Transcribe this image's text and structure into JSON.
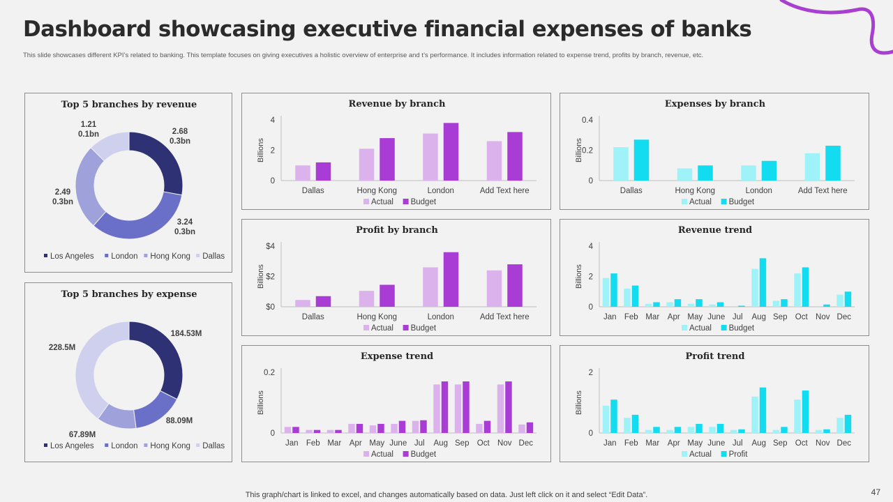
{
  "header": {
    "title": "Dashboard showcasing executive financial expenses of banks",
    "subtitle": "This slide showcases different KPI’s related to banking. This template focuses on giving executives a holistic overview of enterprise and t’s performance. It includes information related to expense trend, profits by branch, revenue, etc."
  },
  "footer": {
    "note": "This graph/chart is linked to excel, and changes automatically based on data. Just left click on it and select “Edit Data”.",
    "page_number": "47"
  },
  "colors": {
    "purple_light": "#dbb2ec",
    "purple": "#a83cd4",
    "cyan_light": "#9ff2f8",
    "cyan": "#14dcf0",
    "navy": "#2f3175",
    "blue": "#6a6fc8",
    "periwinkle": "#9ea1da",
    "lavender": "#cfd0ee",
    "accent_line": "#a93fd0"
  },
  "chart_data": [
    {
      "id": "revenue-donut",
      "type": "pie",
      "title": "Top 5 branches by revenue",
      "labels": [
        "Los Angeles",
        "London",
        "Hong Kong",
        "Dallas"
      ],
      "values": [
        2.68,
        3.24,
        2.49,
        1.21
      ],
      "value_labels": [
        "2.68",
        "3.24",
        "2.49",
        "1.21"
      ],
      "sub_labels": [
        "0.3bn",
        "0.3bn",
        "0.3bn",
        "0.1bn"
      ],
      "legend": "bottom"
    },
    {
      "id": "expense-donut",
      "type": "pie",
      "title": "Top 5 branches by expense",
      "labels": [
        "Los Angeles",
        "London",
        "Hong Kong",
        "Dallas"
      ],
      "values": [
        184.53,
        88.09,
        67.89,
        228.5
      ],
      "value_labels": [
        "184.53M",
        "88.09M",
        "67.89M",
        "228.5M"
      ],
      "legend": "bottom"
    },
    {
      "id": "revenue-by-branch",
      "type": "bar",
      "title": "Revenue by branch",
      "categories": [
        "Dallas",
        "Hong Kong",
        "London",
        "Add Text here"
      ],
      "series": [
        {
          "name": "Actual",
          "values": [
            1.0,
            2.1,
            3.1,
            2.6
          ]
        },
        {
          "name": "Budget",
          "values": [
            1.2,
            2.8,
            3.8,
            3.2
          ]
        }
      ],
      "ylabel": "Billions",
      "ylim": [
        0,
        4
      ],
      "yticks": [
        "0",
        "2",
        "4"
      ],
      "ytick_values": [
        0,
        2,
        4
      ],
      "colors": [
        "purple_light",
        "purple"
      ],
      "legend": "bottom"
    },
    {
      "id": "expenses-by-branch",
      "type": "bar",
      "title": "Expenses by branch",
      "categories": [
        "Dallas",
        "Hong Kong",
        "London",
        "Add Text here"
      ],
      "series": [
        {
          "name": "Actual",
          "values": [
            0.22,
            0.08,
            0.1,
            0.18
          ]
        },
        {
          "name": "Budget",
          "values": [
            0.27,
            0.1,
            0.13,
            0.23
          ]
        }
      ],
      "ylabel": "Billions",
      "ylim": [
        0,
        0.4
      ],
      "yticks": [
        "0",
        "0.2",
        "0.4"
      ],
      "ytick_values": [
        0,
        0.2,
        0.4
      ],
      "colors": [
        "cyan_light",
        "cyan"
      ],
      "legend": "bottom"
    },
    {
      "id": "profit-by-branch",
      "type": "bar",
      "title": "Profit by branch",
      "categories": [
        "Dallas",
        "Hong Kong",
        "London",
        "Add Text here"
      ],
      "series": [
        {
          "name": "Actual",
          "values": [
            0.45,
            1.05,
            2.6,
            2.4
          ]
        },
        {
          "name": "Budget",
          "values": [
            0.7,
            1.45,
            3.6,
            2.8
          ]
        }
      ],
      "ylabel": "Billions",
      "ylim": [
        0,
        4
      ],
      "yticks": [
        "$0",
        "$2",
        "$4"
      ],
      "ytick_values": [
        0,
        2,
        4
      ],
      "colors": [
        "purple_light",
        "purple"
      ],
      "legend": "bottom"
    },
    {
      "id": "revenue-trend",
      "type": "bar",
      "title": "Revenue trend",
      "categories": [
        "Jan",
        "Feb",
        "Mar",
        "Apr",
        "May",
        "June",
        "Jul",
        "Aug",
        "Sep",
        "Oct",
        "Nov",
        "Dec"
      ],
      "series": [
        {
          "name": "Actual",
          "values": [
            1.9,
            1.2,
            0.2,
            0.3,
            0.2,
            0.15,
            0.05,
            2.5,
            0.4,
            2.2,
            0.05,
            0.8
          ]
        },
        {
          "name": "Budget",
          "values": [
            2.2,
            1.4,
            0.3,
            0.5,
            0.5,
            0.3,
            0.07,
            3.2,
            0.5,
            2.6,
            0.15,
            1.0
          ]
        }
      ],
      "ylabel": "Billions",
      "ylim": [
        0,
        4
      ],
      "yticks": [
        "0",
        "2",
        "4"
      ],
      "ytick_values": [
        0,
        2,
        4
      ],
      "colors": [
        "cyan_light",
        "cyan"
      ],
      "legend": "bottom"
    },
    {
      "id": "expense-trend",
      "type": "bar",
      "title": "Expense trend",
      "categories": [
        "Jan",
        "Feb",
        "Mar",
        "Apr",
        "May",
        "June",
        "Jul",
        "Aug",
        "Sep",
        "Oct",
        "Nov",
        "Dec"
      ],
      "series": [
        {
          "name": "Actual",
          "values": [
            0.02,
            0.01,
            0.01,
            0.03,
            0.025,
            0.03,
            0.04,
            0.16,
            0.16,
            0.03,
            0.16,
            0.028
          ]
        },
        {
          "name": "Budget",
          "values": [
            0.02,
            0.01,
            0.01,
            0.03,
            0.03,
            0.04,
            0.042,
            0.17,
            0.17,
            0.04,
            0.17,
            0.035
          ]
        }
      ],
      "ylabel": "Billions",
      "ylim": [
        0,
        0.2
      ],
      "yticks": [
        "0",
        "0.2"
      ],
      "ytick_values": [
        0,
        0.2
      ],
      "colors": [
        "purple_light",
        "purple"
      ],
      "legend": "bottom"
    },
    {
      "id": "profit-trend",
      "type": "bar",
      "title": "Profit trend",
      "categories": [
        "Jan",
        "Feb",
        "Mar",
        "Apr",
        "May",
        "June",
        "Jul",
        "Aug",
        "Sep",
        "Oct",
        "Nov",
        "Dec"
      ],
      "series": [
        {
          "name": "Actual",
          "values": [
            0.9,
            0.5,
            0.1,
            0.1,
            0.2,
            0.2,
            0.1,
            1.2,
            0.1,
            1.1,
            0.1,
            0.5
          ]
        },
        {
          "name": "Profit",
          "values": [
            1.1,
            0.6,
            0.2,
            0.2,
            0.3,
            0.3,
            0.12,
            1.5,
            0.2,
            1.4,
            0.12,
            0.6
          ]
        }
      ],
      "ylabel": "Billions",
      "ylim": [
        0,
        2
      ],
      "yticks": [
        "0",
        "2"
      ],
      "ytick_values": [
        0,
        2
      ],
      "colors": [
        "cyan_light",
        "cyan"
      ],
      "legend": "bottom"
    }
  ]
}
